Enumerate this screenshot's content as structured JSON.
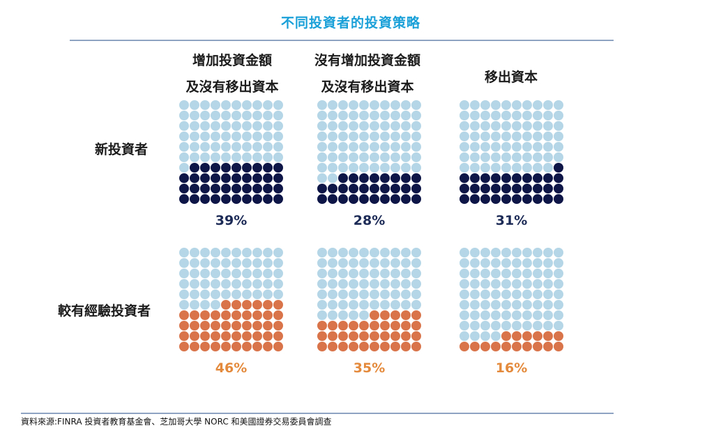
{
  "title": "不同投資者的投資策略",
  "columns": [
    {
      "line1": "增加投資金額",
      "line2": "及沒有移出資本"
    },
    {
      "line1": "沒有增加投資金額",
      "line2": "及沒有移出資本"
    },
    {
      "line1": "",
      "line2": "移出資本"
    }
  ],
  "rows": [
    {
      "label": "新投資者"
    },
    {
      "label": "較有經驗投資者"
    }
  ],
  "colors": {
    "empty": "#b5d6e6",
    "new_investor": "#0e1648",
    "experienced_investor": "#d9744a",
    "pct_new": "#1c2a56",
    "pct_experienced": "#e48a3c"
  },
  "source": "資料來源:FINRA 投資者教育基金會、芝加哥大學 NORC 和美國證券交易委員會調查",
  "chart_data": {
    "type": "waffle",
    "title": "不同投資者的投資策略",
    "grid": "10x10",
    "categories": [
      "增加投資金額及沒有移出資本",
      "沒有增加投資金額及沒有移出資本",
      "移出資本"
    ],
    "series": [
      {
        "name": "新投資者",
        "values": [
          39,
          28,
          31
        ],
        "labels": [
          "39%",
          "28%",
          "31%"
        ]
      },
      {
        "name": "較有經驗投資者",
        "values": [
          46,
          35,
          16
        ],
        "labels": [
          "46%",
          "35%",
          "16%"
        ]
      }
    ]
  }
}
